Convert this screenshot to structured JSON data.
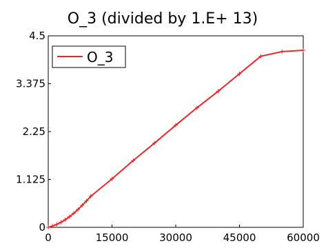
{
  "chart_data": {
    "type": "line",
    "title": "O_3 (divided by 1.E+ 13)",
    "xlabel": "",
    "ylabel": "",
    "xlim": [
      0,
      60000
    ],
    "ylim": [
      0,
      4.5
    ],
    "x_ticks": [
      "0",
      "15000",
      "30000",
      "45000",
      "60000"
    ],
    "y_ticks": [
      "0",
      "1.125",
      "2.25",
      "3.375",
      "4.5"
    ],
    "grid": false,
    "legend_position": "top-left",
    "series": [
      {
        "name": "O_3",
        "color": "#e8262c",
        "marker": "plus",
        "x": [
          0,
          1000,
          2000,
          3000,
          4000,
          5000,
          6000,
          7000,
          8000,
          9000,
          10000,
          15000,
          20000,
          25000,
          30000,
          35000,
          40000,
          45000,
          50000,
          55000,
          60000
        ],
        "y": [
          0,
          0.03,
          0.07,
          0.12,
          0.18,
          0.25,
          0.33,
          0.42,
          0.52,
          0.62,
          0.73,
          1.14,
          1.57,
          1.98,
          2.4,
          2.81,
          3.2,
          3.61,
          4.02,
          4.13,
          4.16
        ]
      }
    ]
  }
}
